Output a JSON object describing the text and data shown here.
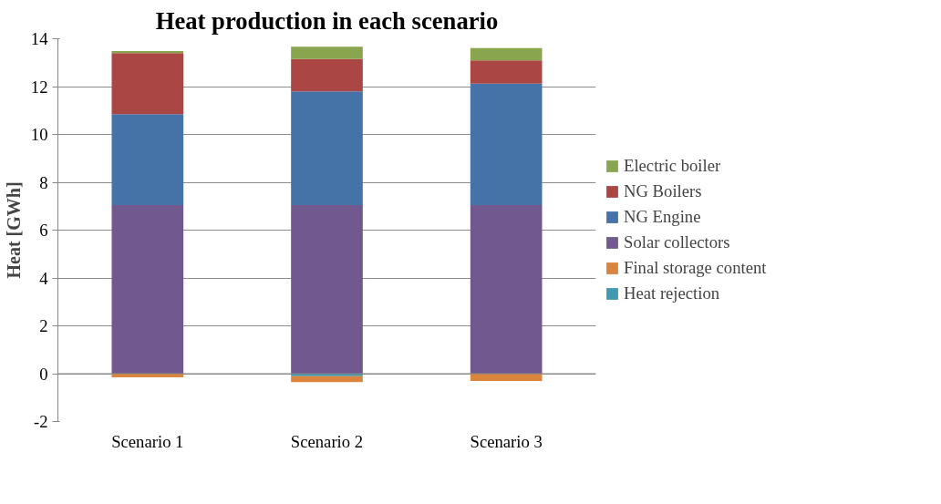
{
  "chart_data": {
    "type": "bar",
    "title": "Heat production in each scenario",
    "ylabel": "Heat [GWh]",
    "categories": [
      "Scenario 1",
      "Scenario 2",
      "Scenario 3"
    ],
    "stacked": true,
    "series": [
      {
        "name": "Heat rejection",
        "color": "#4198af",
        "values": [
          0,
          -0.1,
          0
        ]
      },
      {
        "name": "Final storage content",
        "color": "#db843d",
        "values": [
          -0.15,
          -0.25,
          -0.3
        ]
      },
      {
        "name": "Solar collectors",
        "color": "#71588f",
        "values": [
          7.05,
          7.05,
          7.05
        ]
      },
      {
        "name": "NG Engine",
        "color": "#4572a7",
        "values": [
          3.8,
          4.75,
          5.07
        ]
      },
      {
        "name": "NG Boilers",
        "color": "#aa4643",
        "values": [
          2.55,
          1.35,
          0.98
        ]
      },
      {
        "name": "Electric boiler",
        "color": "#89a54e",
        "values": [
          0.09,
          0.52,
          0.51
        ]
      }
    ],
    "ylim": [
      -2,
      14
    ],
    "yticks": [
      -2,
      0,
      2,
      4,
      6,
      8,
      10,
      12,
      14
    ],
    "grid": "y",
    "legend": "right"
  }
}
